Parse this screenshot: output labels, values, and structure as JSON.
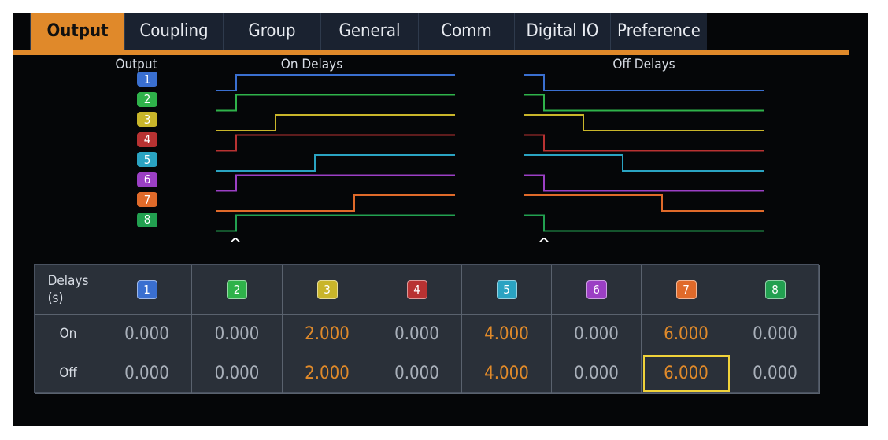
{
  "tabs": [
    "Output",
    "Coupling",
    "Group",
    "General",
    "Comm",
    "Digital IO",
    "Preference"
  ],
  "active_tab": "Output",
  "diagram": {
    "output_header": "Output",
    "on_delays_header": "On Delays",
    "off_delays_header": "Off Delays",
    "cursor_glyph": "^"
  },
  "outputs": [
    {
      "label": "1",
      "color": "#3a6fd0"
    },
    {
      "label": "2",
      "color": "#2fb24a"
    },
    {
      "label": "3",
      "color": "#c9b52a"
    },
    {
      "label": "4",
      "color": "#b83232"
    },
    {
      "label": "5",
      "color": "#2aa3c2"
    },
    {
      "label": "6",
      "color": "#9b3fc4"
    },
    {
      "label": "7",
      "color": "#e06a2a"
    },
    {
      "label": "8",
      "color": "#22a050"
    }
  ],
  "table": {
    "corner_label": "Delays\n(s)",
    "on_label": "On",
    "off_label": "Off",
    "on": [
      "0.000",
      "0.000",
      "2.000",
      "0.000",
      "4.000",
      "0.000",
      "6.000",
      "0.000"
    ],
    "off": [
      "0.000",
      "0.000",
      "2.000",
      "0.000",
      "4.000",
      "0.000",
      "6.000",
      "0.000"
    ],
    "selected_cell": "off-7"
  }
}
